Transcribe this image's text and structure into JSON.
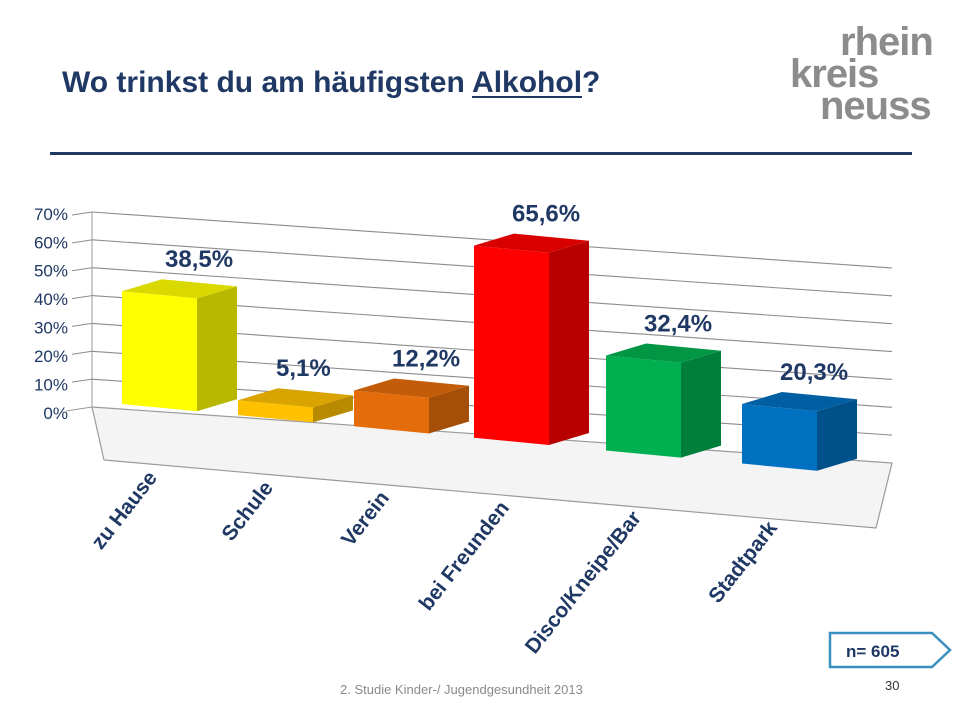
{
  "header": {
    "title_prefix": "Wo trinkst du am häufigsten ",
    "title_keyword": "Alkohol",
    "title_suffix": "?"
  },
  "logo": {
    "line1": "rhein",
    "line2": "kreis",
    "line3": "neuss"
  },
  "chart_data": {
    "type": "bar",
    "title": "Wo trinkst du am häufigsten Alkohol?",
    "categories": [
      "zu Hause",
      "Schule",
      "Verein",
      "bei Freunden",
      "Disco/Kneipe/Bar",
      "Stadtpark"
    ],
    "values": [
      38.5,
      5.1,
      12.2,
      65.6,
      32.4,
      20.3
    ],
    "value_labels": [
      "38,5%",
      "5,1%",
      "12,2%",
      "65,6%",
      "32,4%",
      "20,3%"
    ],
    "colors": [
      "#ffff00",
      "#ffc000",
      "#e46c0a",
      "#ff0000",
      "#00b050",
      "#0070c0"
    ],
    "yticks": [
      "0%",
      "10%",
      "20%",
      "30%",
      "40%",
      "50%",
      "60%",
      "70%"
    ],
    "ylim": [
      0,
      70
    ],
    "grid": true,
    "style": "3d-columns"
  },
  "badge": {
    "label": "n= 605"
  },
  "footer": {
    "text": "2. Studie Kinder-/ Jugendgesundheit 2013",
    "page": "30"
  }
}
